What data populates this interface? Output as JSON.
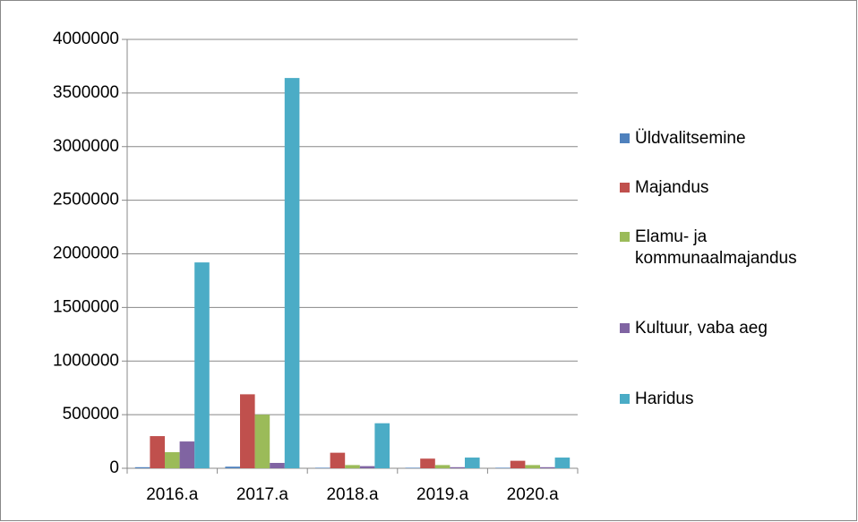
{
  "chart_data": {
    "type": "bar",
    "categories": [
      "2016.a",
      "2017.a",
      "2018.a",
      "2019.a",
      "2020.a"
    ],
    "series": [
      {
        "name": "Üldvalitsemine",
        "color": "#4f81bd",
        "values": [
          10000,
          15000,
          5000,
          5000,
          5000
        ]
      },
      {
        "name": "Majandus",
        "color": "#c0504d",
        "values": [
          300000,
          690000,
          145000,
          90000,
          70000
        ]
      },
      {
        "name": "Elamu- ja kommunaalmajandus",
        "color": "#9bbb59",
        "values": [
          150000,
          500000,
          30000,
          30000,
          30000
        ]
      },
      {
        "name": "Kultuur, vaba aeg",
        "color": "#8064a2",
        "values": [
          250000,
          50000,
          20000,
          10000,
          10000
        ]
      },
      {
        "name": "Haridus",
        "color": "#4bacc6",
        "values": [
          1920000,
          3640000,
          420000,
          100000,
          100000
        ]
      }
    ],
    "ylim": [
      0,
      4000000
    ],
    "yticks": [
      0,
      500000,
      1000000,
      1500000,
      2000000,
      2500000,
      3000000,
      3500000,
      4000000
    ],
    "grid": true,
    "legend": "right"
  }
}
